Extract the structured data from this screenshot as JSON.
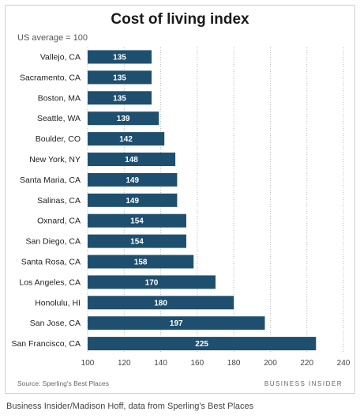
{
  "chart_data": {
    "type": "bar",
    "orientation": "horizontal",
    "title": "Cost of living index",
    "subtitle": "US average = 100",
    "categories": [
      "Vallejo, CA",
      "Sacramento, CA",
      "Boston, MA",
      "Seattle, WA",
      "Boulder, CO",
      "New York, NY",
      "Santa Maria, CA",
      "Salinas, CA",
      "Oxnard, CA",
      "San Diego, CA",
      "Santa Rosa, CA",
      "Los Angeles, CA",
      "Honolulu, HI",
      "San Jose, CA",
      "San Francisco, CA"
    ],
    "values": [
      135,
      135,
      135,
      139,
      142,
      148,
      149,
      149,
      154,
      154,
      158,
      170,
      180,
      197,
      225
    ],
    "xlim": [
      100,
      240
    ],
    "xticks": [
      100,
      120,
      140,
      160,
      180,
      200,
      220,
      240
    ],
    "bar_color": "#1e4f6e",
    "grid": "vertical-dotted"
  },
  "footer": {
    "source": "Source: Sperling's Best Places",
    "brand": "BUSINESS INSIDER"
  },
  "credit": "Business Insider/Madison Hoff, data from Sperling's Best Places"
}
